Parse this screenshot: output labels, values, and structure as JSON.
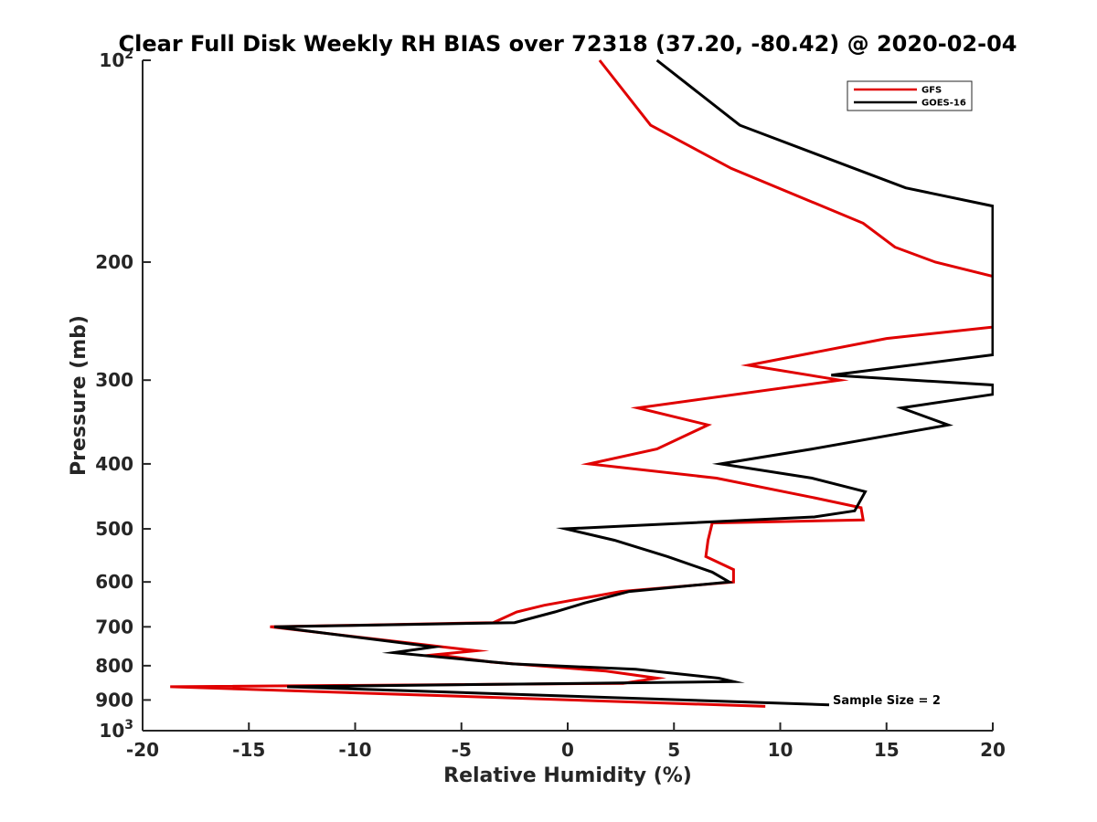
{
  "chart_data": {
    "type": "line",
    "title": "Clear Full Disk Weekly RH BIAS over 72318 (37.20, -80.42) @ 2020-02-04",
    "xlabel": "Relative Humidity (%)",
    "ylabel": "Pressure (mb)",
    "xlim": [
      -20,
      20
    ],
    "ylim": [
      100,
      1000
    ],
    "y_scale": "log",
    "y_reversed": true,
    "grid": false,
    "legend_position": "top-right",
    "x_ticks": [
      -20,
      -15,
      -10,
      -5,
      0,
      5,
      10,
      15,
      20
    ],
    "y_ticks": [
      {
        "value": 100,
        "label_base": "10",
        "label_exp": "2"
      },
      {
        "value": 200,
        "label": "200"
      },
      {
        "value": 300,
        "label": "300"
      },
      {
        "value": 400,
        "label": "400"
      },
      {
        "value": 500,
        "label": "500"
      },
      {
        "value": 600,
        "label": "600"
      },
      {
        "value": 700,
        "label": "700"
      },
      {
        "value": 800,
        "label": "800"
      },
      {
        "value": 900,
        "label": "900"
      },
      {
        "value": 1000,
        "label_base": "10",
        "label_exp": "3"
      }
    ],
    "series": [
      {
        "name": "GFS",
        "color": "#e00000",
        "points": [
          [
            1.5,
            100
          ],
          [
            3.9,
            125
          ],
          [
            7.7,
            145
          ],
          [
            13.9,
            175
          ],
          [
            15.4,
            190
          ],
          [
            17.3,
            200
          ],
          [
            20.0,
            210
          ],
          [
            20.0,
            250
          ],
          [
            15.0,
            260
          ],
          [
            8.5,
            285
          ],
          [
            12.8,
            300
          ],
          [
            3.3,
            330
          ],
          [
            6.6,
            350
          ],
          [
            4.2,
            380
          ],
          [
            1.0,
            400
          ],
          [
            7.0,
            420
          ],
          [
            11.7,
            450
          ],
          [
            13.8,
            465
          ],
          [
            13.9,
            485
          ],
          [
            6.8,
            490
          ],
          [
            6.6,
            520
          ],
          [
            6.5,
            550
          ],
          [
            7.8,
            575
          ],
          [
            7.8,
            600
          ],
          [
            2.5,
            620
          ],
          [
            -1.1,
            650
          ],
          [
            -2.4,
            665
          ],
          [
            -3.5,
            690
          ],
          [
            -14.0,
            700
          ],
          [
            -4.3,
            760
          ],
          [
            -6.2,
            770
          ],
          [
            -3.6,
            790
          ],
          [
            1.8,
            815
          ],
          [
            4.2,
            835
          ],
          [
            2.6,
            850
          ],
          [
            -18.7,
            860
          ],
          [
            9.3,
            920
          ]
        ]
      },
      {
        "name": "GOES-16",
        "color": "#000000",
        "points": [
          [
            4.2,
            100
          ],
          [
            8.1,
            125
          ],
          [
            15.9,
            155
          ],
          [
            20.0,
            165
          ],
          [
            20.0,
            275
          ],
          [
            12.4,
            295
          ],
          [
            20.0,
            305
          ],
          [
            20.0,
            315
          ],
          [
            15.7,
            330
          ],
          [
            17.9,
            350
          ],
          [
            11.5,
            380
          ],
          [
            7.2,
            400
          ],
          [
            11.5,
            420
          ],
          [
            14.0,
            440
          ],
          [
            13.5,
            470
          ],
          [
            11.6,
            480
          ],
          [
            -0.1,
            500
          ],
          [
            2.2,
            520
          ],
          [
            4.7,
            550
          ],
          [
            6.8,
            580
          ],
          [
            7.6,
            600
          ],
          [
            2.9,
            620
          ],
          [
            0.8,
            645
          ],
          [
            -0.6,
            665
          ],
          [
            -2.5,
            690
          ],
          [
            -13.8,
            700
          ],
          [
            -6.3,
            750
          ],
          [
            -8.2,
            765
          ],
          [
            -2.6,
            795
          ],
          [
            3.2,
            810
          ],
          [
            7.1,
            835
          ],
          [
            7.8,
            845
          ],
          [
            -13.2,
            860
          ],
          [
            12.3,
            915
          ]
        ]
      }
    ],
    "annotation": "Sample Size = 2"
  }
}
